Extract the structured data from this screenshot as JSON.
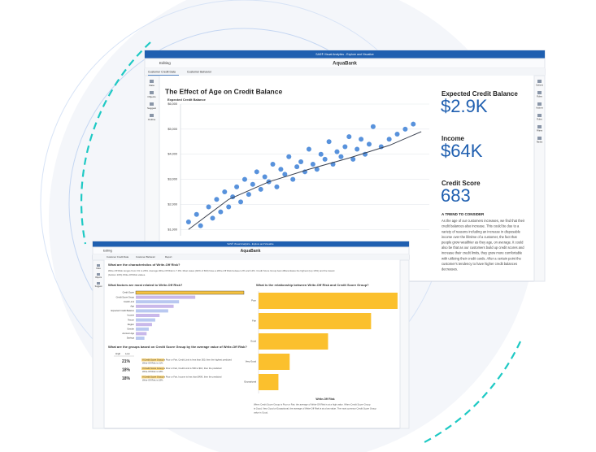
{
  "back_window": {
    "app_title": "SAS® Visual Analytics - Explore and Visualize",
    "menu": "Editing",
    "report_name": "AquaBank",
    "tabs": [
      "Customer Credit Data",
      "Customer Behavior"
    ],
    "left_rail": [
      "Data",
      "Objects",
      "Suggest",
      "Outline"
    ],
    "right_rail": [
      "Options",
      "Roles",
      "Actions",
      "Rules",
      "Filters",
      "Ranks"
    ],
    "chart": {
      "type": "scatter",
      "title": "The Effect of Age on Credit Balance",
      "y_label": "Expected Credit Balance",
      "color": "#3b7fd6",
      "grid": true,
      "x": [
        20,
        22,
        23,
        25,
        26,
        27,
        28,
        29,
        30,
        31,
        32,
        33,
        34,
        35,
        36,
        37,
        38,
        39,
        40,
        41,
        42,
        43,
        44,
        45,
        46,
        47,
        48,
        49,
        50,
        51,
        52,
        53,
        54,
        55,
        56,
        57,
        58,
        59,
        60,
        61,
        62,
        63,
        64,
        65,
        66,
        68,
        70,
        72,
        74,
        76
      ],
      "y": [
        1300,
        1600,
        1150,
        1900,
        1450,
        2200,
        1700,
        2500,
        1900,
        2300,
        2700,
        2100,
        3000,
        2400,
        2800,
        3300,
        2600,
        3100,
        2900,
        3600,
        2700,
        3400,
        3200,
        3900,
        3000,
        3500,
        3700,
        3300,
        4200,
        3600,
        3400,
        4000,
        3800,
        4500,
        3600,
        4100,
        3900,
        4300,
        4700,
        3800,
        4200,
        4600,
        4000,
        4400,
        5100,
        4300,
        4600,
        4800,
        5000,
        5200
      ],
      "xlim": [
        18,
        80
      ],
      "ylim": [
        750,
        6000
      ],
      "yticks": [
        {
          "value": 1000,
          "label": "$1,000"
        },
        {
          "value": 2000,
          "label": "$2,000"
        },
        {
          "value": 3000,
          "label": "$3,000"
        },
        {
          "value": 4000,
          "label": "$4,000"
        },
        {
          "value": 5000,
          "label": "$5,000"
        },
        {
          "value": 6000,
          "label": "$6,000"
        }
      ],
      "trend": {
        "x": [
          20,
          30,
          40,
          50,
          60,
          70,
          78
        ],
        "y": [
          1000,
          2200,
          2900,
          3400,
          3850,
          4350,
          4900
        ]
      }
    },
    "kpis": [
      {
        "label": "Expected Credit Balance",
        "value": "$2.9K"
      },
      {
        "label": "Income",
        "value": "$64K"
      },
      {
        "label": "Credit Score",
        "value": "683"
      }
    ],
    "insight": {
      "title": "A TREND TO CONSIDER",
      "lines": [
        "As the age of our customers increases, we find that their",
        "credit balances also increase. This could be due to a",
        "variety of reasons including an increase in disposable",
        "income over the lifetime of a customer, the fact that",
        "people grow wealthier as they age, on average. It could",
        "also be that as our customers build up credit scores and",
        "increase their credit limits, they grow more comfortable",
        "with utilizing their credit cards. After a certain point the",
        "customer's tendency to have higher credit balances",
        "decreases."
      ]
    }
  },
  "front_window": {
    "app_title": "SAS® Visual Analytics - Explore and Visualize",
    "menu": "Editing",
    "report_name": "AquaBank",
    "tabs": [
      "Customer Credit Data",
      "Customer Behavior",
      "Report"
    ],
    "left_rail": [
      "Data",
      "Objects",
      "Suggest"
    ],
    "characteristics": {
      "heading": "What are the characteristics of Write-Off Risk?",
      "lines": [
        "Write-Off Risk ranges from 1% to 26%. Average Write-Off Risk is 7.9%. Most cases (94% of 663) have a Write-Off Risk between 2% and 14%. Credit Score Group best differentiates the highest (top 10%) and the lowest",
        "(bottom 10%) Write-Off Risk values."
      ]
    },
    "factors": {
      "type": "bar",
      "heading": "What factors are most related to Write-Off Risk?",
      "categories": [
        "Credit Score",
        "Credit Score Group",
        "Credit Limit",
        "Age",
        "Expected Credit Balance",
        "Income",
        "Tenure",
        "Region",
        "Gender",
        "Account Age",
        "Savings"
      ],
      "values": [
        100,
        55,
        40,
        35,
        30,
        22,
        18,
        15,
        12,
        10,
        8
      ],
      "xlim": [
        0,
        100
      ],
      "colors": [
        "#f5c242",
        "#c9b8ea",
        "#b9c8f0",
        "#c9b8ea",
        "#b9c8f0",
        "#c9b8ea",
        "#b9c8f0",
        "#c9b8ea",
        "#b9c8f0",
        "#c9b8ea",
        "#b9c8f0"
      ]
    },
    "relationship": {
      "type": "bar",
      "heading": "What is the relationship between Write-Off Risk and Credit Score Group?",
      "categories": [
        "Poor",
        "Fair",
        "Good",
        "Very Good",
        "Exceptional"
      ],
      "values": [
        21,
        17,
        10.5,
        4.7,
        3
      ],
      "xlim": [
        0,
        21.5
      ],
      "color": "#fbc02d",
      "x_label": "Write-Off Risk",
      "lines": [
        "When Credit Score Group is Poor or Fair, the average of Write-Off Risk is at a high value. When Credit Score Group",
        "is Good, Very Good or Exceptional, the average of Write-Off Risk is at a low value. The most common Credit Score Group",
        "value is Good."
      ]
    },
    "groups": {
      "heading": "What are the groups based on Credit Score Group by the average value of Write-Off Risk?",
      "scale": [
        "High",
        "Low"
      ],
      "rows": [
        {
          "value": "21%",
          "text": [
            "If Credit Score Group is Poor or Fair, Credit Limit is less than 500, then the highest predicted",
            "Write-Off Risk is 21%"
          ]
        },
        {
          "value": "18%",
          "text": [
            "If Credit Score Group is Poor or Fair, Credit Limit is 500 to $1K, then the predicted",
            "Write-Off Risk is 18%"
          ]
        },
        {
          "value": "18%",
          "text": [
            "If Credit Score Group is Poor or Fair, Income is less than $40K, then the predicted",
            "Write-Off Risk is 18%"
          ]
        }
      ]
    }
  }
}
